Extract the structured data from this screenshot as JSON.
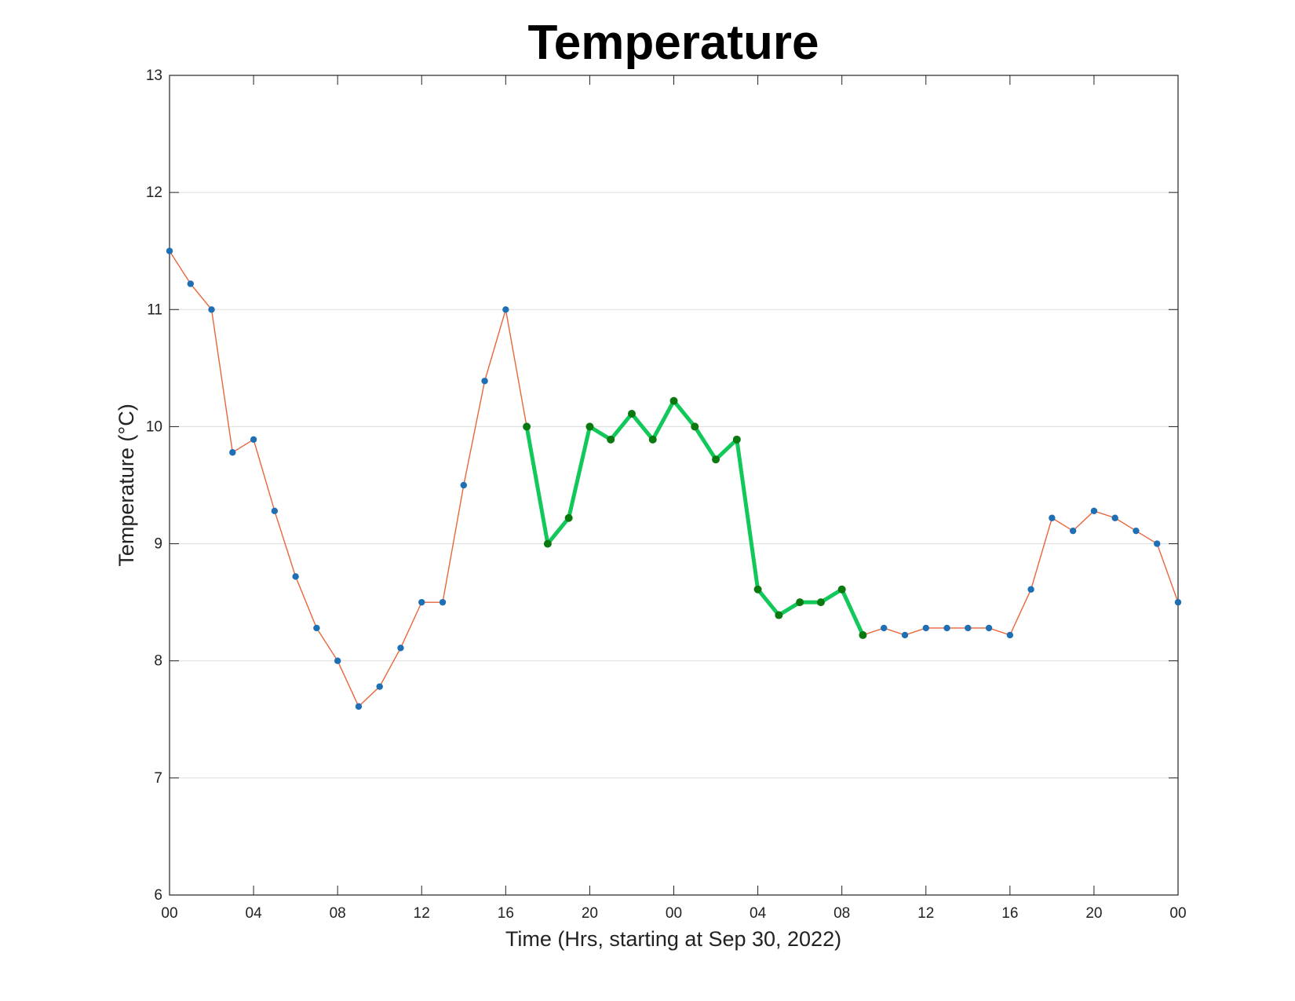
{
  "chart_data": {
    "type": "line",
    "title": "Temperature",
    "xlabel": "Time (Hrs, starting at Sep 30, 2022)",
    "ylabel": "Temperature (°C)",
    "xlim": [
      0,
      48
    ],
    "ylim": [
      6,
      13
    ],
    "yticks": [
      6,
      7,
      8,
      9,
      10,
      11,
      12,
      13
    ],
    "ytick_labels": [
      "6",
      "7",
      "8",
      "9",
      "10",
      "11",
      "12",
      "13"
    ],
    "xticks": [
      0,
      4,
      8,
      12,
      16,
      20,
      24,
      28,
      32,
      36,
      40,
      44,
      48
    ],
    "xtick_labels": [
      "00",
      "04",
      "08",
      "12",
      "16",
      "20",
      "00",
      "04",
      "08",
      "12",
      "16",
      "20",
      "00"
    ],
    "grid": "horizontal",
    "x": [
      0,
      1,
      2,
      3,
      4,
      5,
      6,
      7,
      8,
      9,
      10,
      11,
      12,
      13,
      14,
      15,
      16,
      17,
      18,
      19,
      20,
      21,
      22,
      23,
      24,
      25,
      26,
      27,
      28,
      29,
      30,
      31,
      32,
      33,
      34,
      35,
      36,
      37,
      38,
      39,
      40,
      41,
      42,
      43,
      44,
      45,
      46,
      47,
      48
    ],
    "series": [
      {
        "values": [
          11.5,
          11.22,
          11.0,
          9.78,
          9.89,
          9.28,
          8.72,
          8.28,
          8.0,
          7.61,
          7.78,
          8.11,
          8.5,
          8.5,
          9.5,
          10.39,
          11.0,
          10.0,
          9.0,
          9.22,
          10.0,
          9.89,
          10.11,
          9.89,
          10.22,
          10.0,
          9.72,
          9.89,
          8.61,
          8.39,
          8.5,
          8.5,
          8.61,
          8.22,
          8.28,
          8.22,
          8.28,
          8.28,
          8.28,
          8.28,
          8.22,
          8.61,
          9.22,
          9.11,
          9.28,
          9.22,
          9.11,
          9.0,
          8.5
        ],
        "line_color": "#e8663a",
        "marker_color": "#1f6fb5"
      }
    ],
    "highlight": {
      "x_range": [
        17,
        33
      ],
      "line_color": "#12c85a",
      "marker_color": "#0a7a10"
    }
  }
}
